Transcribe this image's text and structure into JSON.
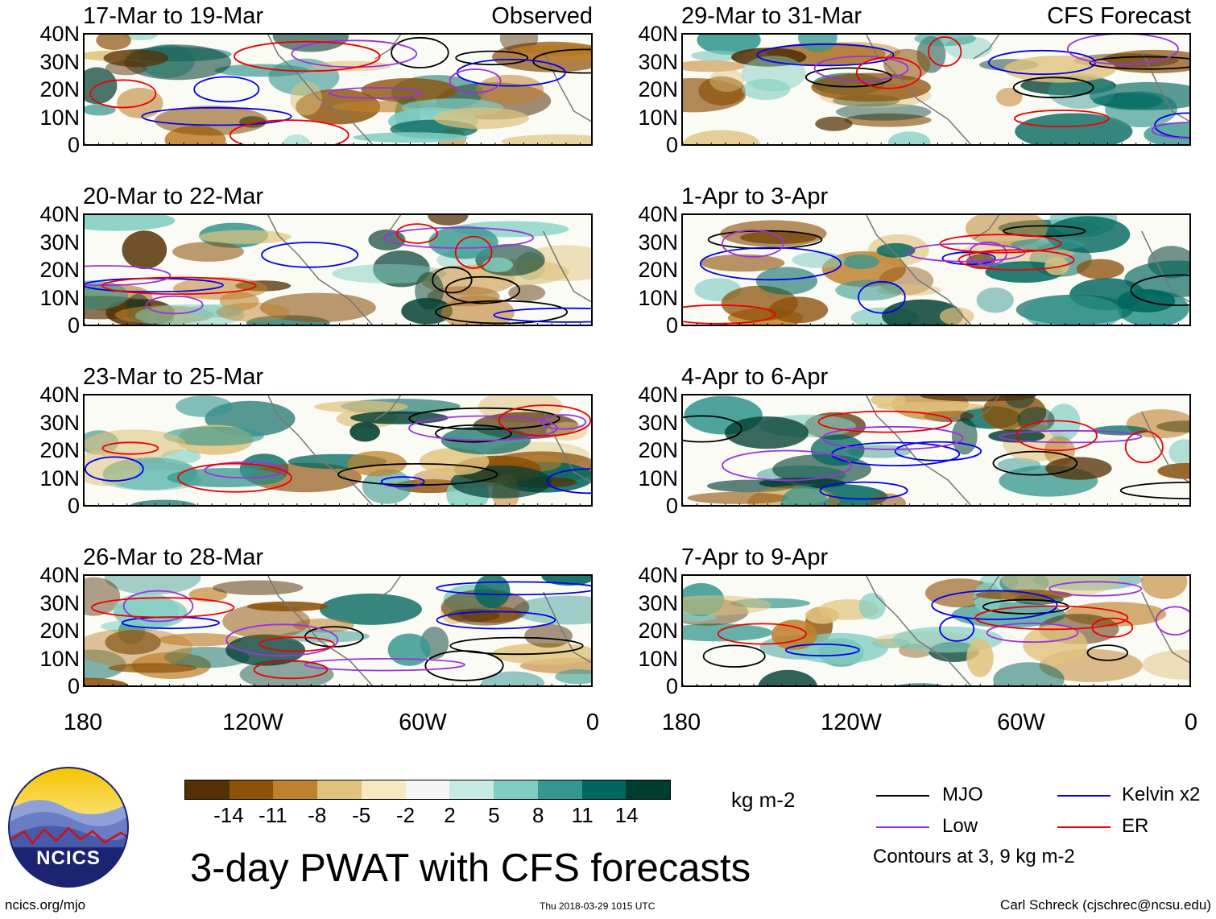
{
  "panels": [
    {
      "id": "p1",
      "title": "17-Mar to 19-Mar",
      "tag": "Observed"
    },
    {
      "id": "p2",
      "title": "20-Mar to 22-Mar",
      "tag": ""
    },
    {
      "id": "p3",
      "title": "23-Mar to 25-Mar",
      "tag": ""
    },
    {
      "id": "p4",
      "title": "26-Mar to 28-Mar",
      "tag": ""
    },
    {
      "id": "p5",
      "title": "29-Mar to 31-Mar",
      "tag": "CFS Forecast"
    },
    {
      "id": "p6",
      "title": "1-Apr to 3-Apr",
      "tag": ""
    },
    {
      "id": "p7",
      "title": "4-Apr to 6-Apr",
      "tag": ""
    },
    {
      "id": "p8",
      "title": "7-Apr to 9-Apr",
      "tag": ""
    }
  ],
  "lat_labels": [
    "40N",
    "30N",
    "20N",
    "10N",
    "0"
  ],
  "lon_labels": [
    "180",
    "120W",
    "60W",
    "0"
  ],
  "colorbar": {
    "colors": [
      "#543005",
      "#8c510a",
      "#bf812d",
      "#dfc27d",
      "#f6e8c3",
      "#f5f5f5",
      "#c7eae5",
      "#80cdc1",
      "#35978f",
      "#01665e",
      "#003c30"
    ],
    "labels": [
      "-14",
      "-11",
      "-8",
      "-5",
      "-2",
      "2",
      "5",
      "8",
      "11",
      "14"
    ],
    "units": "kg m-2"
  },
  "legend": {
    "items": [
      {
        "label": "MJO",
        "color": "#000000"
      },
      {
        "label": "Kelvin x2",
        "color": "#0000ee"
      },
      {
        "label": "Low",
        "color": "#9933dd"
      },
      {
        "label": "ER",
        "color": "#ee0000"
      }
    ],
    "note": "Contours at 3, 9 kg m-2"
  },
  "main_title": "3-day PWAT with CFS forecasts",
  "logo_text": "NCICS",
  "footer": {
    "left": "ncics.org/mjo",
    "center": "Thu 2018-03-29 1015 UTC",
    "right": "Carl Schreck (cjschrec@ncsu.edu)"
  }
}
